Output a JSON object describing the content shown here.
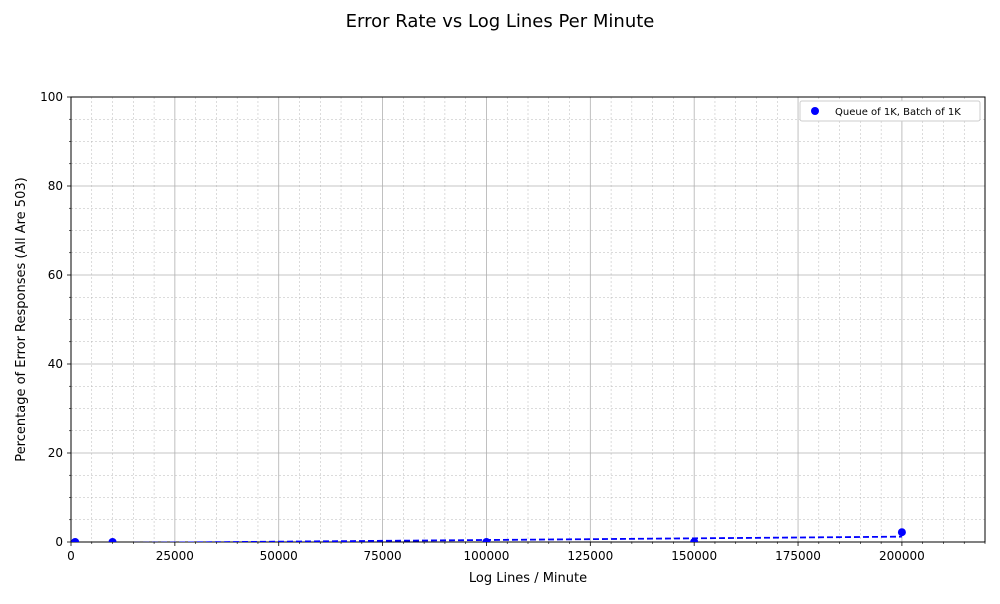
{
  "chart_data": {
    "type": "scatter",
    "title": "Error Rate vs Log Lines Per Minute",
    "xlabel": "Log Lines / Minute",
    "ylabel": "Percentage of Error Responses (All Are 503)",
    "xlim": [
      0,
      220000
    ],
    "ylim": [
      0,
      100
    ],
    "x_ticks": [
      0,
      25000,
      50000,
      75000,
      100000,
      125000,
      150000,
      175000,
      200000
    ],
    "y_ticks": [
      0,
      20,
      40,
      60,
      80,
      100
    ],
    "grid": true,
    "minor_grid": true,
    "legend_position": "top-right",
    "series": [
      {
        "name": "Queue of 1K, Batch of 1K",
        "color": "#0000ff",
        "marker": "circle",
        "x": [
          1000,
          10000,
          100000,
          150000,
          200000
        ],
        "y": [
          0,
          0,
          0,
          0,
          2.2
        ]
      }
    ],
    "trendline": {
      "style": "dashed",
      "color": "#0000ff",
      "x": [
        0,
        200000
      ],
      "y": [
        -0.3,
        1.2
      ]
    }
  }
}
